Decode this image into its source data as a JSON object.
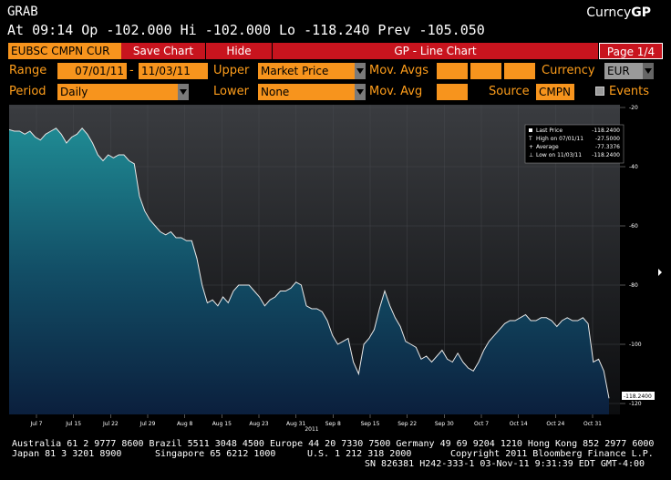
{
  "header": {
    "command": "GRAB",
    "brand_prefix": "Curncy",
    "brand_suffix": "GP",
    "quote": "At 09:14 Op -102.000  Hi -102.000  Lo -118.240  Prev -105.050"
  },
  "toolbar": {
    "ticker": "EUBSC CMPN CUR",
    "save_chart": "Save Chart",
    "hide": "Hide",
    "title": "GP - Line Chart",
    "page": "Page 1/4"
  },
  "form": {
    "range_label": "Range",
    "range_start": "07/01/11",
    "range_sep": "-",
    "range_end": "11/03/11",
    "upper_label": "Upper",
    "upper_value": "Market Price",
    "mov_avgs_label": "Mov. Avgs",
    "currency_label": "Currency",
    "currency_value": "EUR",
    "period_label": "Period",
    "period_value": "Daily",
    "lower_label": "Lower",
    "lower_value": "None",
    "mov_avg_label": "Mov. Avg",
    "source_label": "Source",
    "source_value": "CMPN",
    "events_label": "Events"
  },
  "legend": {
    "last_price_label": "Last Price",
    "last_price_value": "-118.2400",
    "high_label": "High on 07/01/11",
    "high_value": "-27.5000",
    "average_label": "Average",
    "average_value": "-77.3376",
    "low_label": "Low on 11/03/11",
    "low_value": "-118.2400"
  },
  "chart_data": {
    "type": "area",
    "x_tick_labels": [
      "Jul 7",
      "Jul 15",
      "Jul 22",
      "Jul 29",
      "Aug 8",
      "Aug 15",
      "Aug 23",
      "Aug 31",
      "Sep 8",
      "Sep 15",
      "Sep 22",
      "Sep 30",
      "Oct 7",
      "Oct 14",
      "Oct 24",
      "Oct 31"
    ],
    "year_label": "2011",
    "y_tick_labels": [
      "-20",
      "-40",
      "-60",
      "-80",
      "-100",
      "-120"
    ],
    "ylim": [
      -120,
      -20
    ],
    "last_value_label": "-118.2400",
    "values": [
      -27.5,
      -28,
      -28,
      -29,
      -28,
      -30,
      -31,
      -29,
      -28,
      -27,
      -29,
      -32,
      -30,
      -29,
      -27,
      -29,
      -32,
      -36,
      -38,
      -36,
      -37,
      -36,
      -36,
      -38,
      -39,
      -50,
      -55,
      -58,
      -60,
      -62,
      -63,
      -62,
      -64,
      -64,
      -65,
      -65,
      -71,
      -80,
      -86,
      -85,
      -87,
      -84,
      -86,
      -82,
      -80,
      -80,
      -80,
      -82,
      -84,
      -87,
      -85,
      -84,
      -82,
      -82,
      -81,
      -79,
      -80,
      -87,
      -88,
      -88,
      -89,
      -92,
      -97,
      -100,
      -99,
      -98,
      -106,
      -110,
      -100,
      -98,
      -95,
      -88,
      -82,
      -87,
      -91,
      -94,
      -99,
      -100,
      -101,
      -105,
      -104,
      -106,
      -104,
      -102,
      -105,
      -106,
      -103,
      -106,
      -108,
      -109,
      -106,
      -102,
      -99,
      -97,
      -95,
      -93,
      -92,
      -92,
      -91,
      -90,
      -92,
      -92,
      -91,
      -91,
      -92,
      -94,
      -92,
      -91,
      -92,
      -92,
      -91,
      -93,
      -106,
      -105,
      -109,
      -118.24
    ]
  },
  "footer": {
    "line1": "Australia 61 2 9777 8600 Brazil 5511 3048 4500 Europe 44 20 7330 7500 Germany 49 69 9204 1210 Hong Kong 852 2977 6000",
    "line2a": "Japan 81 3 3201 8900",
    "line2b": "Singapore 65 6212 1000",
    "line2c": "U.S. 1 212 318 2000",
    "line2d": "Copyright 2011 Bloomberg Finance L.P.",
    "line3": "SN 826381 H242-333-1 03-Nov-11  9:31:39 EDT  GMT-4:00"
  }
}
